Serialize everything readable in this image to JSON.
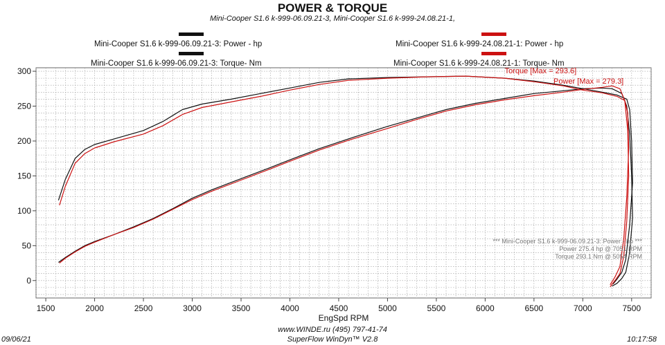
{
  "chart_data": {
    "type": "line",
    "title": "POWER & TORQUE",
    "subtitle": "Mini-Cooper S1.6 k-999-06.09.21-3, Mini-Cooper S1.6 k-999-24.08.21-1,",
    "xlabel": "EngSpd  RPM",
    "ylabel": "",
    "xlim": [
      1400,
      7700
    ],
    "ylim": [
      -25,
      305
    ],
    "xticks": [
      1500,
      2000,
      2500,
      3000,
      3500,
      4000,
      4500,
      5000,
      5500,
      6000,
      6500,
      7000,
      7500
    ],
    "yticks": [
      0,
      50,
      100,
      150,
      200,
      250,
      300
    ],
    "grid": true,
    "legend_position": "top",
    "series": [
      {
        "name": "Mini-Cooper S1.6 k-999-06.09.21-3: Power -  hp",
        "color": "#111111",
        "x": [
          1630,
          1700,
          1800,
          1900,
          2000,
          2200,
          2400,
          2600,
          2800,
          3000,
          3200,
          3500,
          3800,
          4000,
          4300,
          4600,
          5000,
          5300,
          5600,
          5900,
          6200,
          6500,
          6800,
          7000,
          7200,
          7300,
          7400,
          7450,
          7480,
          7500,
          7510,
          7480,
          7440,
          7400,
          7350,
          7300
        ],
        "y": [
          26,
          33,
          42,
          50,
          56,
          66,
          77,
          89,
          103,
          118,
          130,
          146,
          162,
          173,
          189,
          203,
          221,
          233,
          245,
          254,
          261,
          268,
          272,
          275,
          276,
          275,
          268,
          250,
          210,
          150,
          90,
          40,
          12,
          3,
          -4,
          -8
        ]
      },
      {
        "name": "Mini-Cooper S1.6 k-999-06.09.21-3: Torque-  Nm",
        "color": "#111111",
        "x": [
          1630,
          1700,
          1800,
          1900,
          2000,
          2200,
          2500,
          2700,
          2900,
          3100,
          3400,
          3700,
          4000,
          4300,
          4600,
          5000,
          5400,
          5800,
          6200,
          6500,
          6800,
          7000,
          7200,
          7350,
          7450,
          7480,
          7500,
          7510,
          7480,
          7440,
          7400,
          7350,
          7310
        ],
        "y": [
          115,
          145,
          175,
          188,
          195,
          203,
          215,
          228,
          245,
          253,
          260,
          268,
          276,
          284,
          289,
          291,
          292,
          293,
          290,
          286,
          280,
          275,
          270,
          266,
          260,
          245,
          200,
          140,
          80,
          30,
          12,
          2,
          -5
        ]
      },
      {
        "name": "Mini-Cooper S1.6 k-999-24.08.21-1: Power -  hp",
        "color": "#cc1111",
        "x": [
          1640,
          1700,
          1800,
          1900,
          2000,
          2200,
          2400,
          2600,
          2800,
          3000,
          3200,
          3500,
          3800,
          4000,
          4300,
          4600,
          5000,
          5300,
          5600,
          5900,
          6200,
          6500,
          6800,
          7000,
          7200,
          7300,
          7380,
          7430,
          7460,
          7470,
          7450,
          7420,
          7380,
          7330,
          7280
        ],
        "y": [
          25,
          32,
          41,
          49,
          55,
          66,
          76,
          88,
          102,
          116,
          128,
          144,
          160,
          171,
          187,
          201,
          218,
          231,
          243,
          252,
          259,
          265,
          270,
          274,
          277,
          279,
          275,
          258,
          215,
          150,
          85,
          35,
          10,
          0,
          -9
        ]
      },
      {
        "name": "Mini-Cooper S1.6 k-999-24.08.21-1: Torque-  Nm",
        "color": "#cc1111",
        "x": [
          1640,
          1700,
          1800,
          1900,
          2000,
          2200,
          2500,
          2700,
          2900,
          3100,
          3400,
          3700,
          4000,
          4300,
          4600,
          5000,
          5400,
          5800,
          6200,
          6500,
          6800,
          7000,
          7200,
          7350,
          7430,
          7460,
          7470,
          7450,
          7420,
          7380,
          7330,
          7280
        ],
        "y": [
          108,
          135,
          168,
          182,
          190,
          199,
          210,
          222,
          238,
          248,
          256,
          264,
          273,
          281,
          287,
          290,
          292,
          293,
          290,
          285,
          279,
          273,
          269,
          264,
          258,
          240,
          190,
          120,
          60,
          20,
          5,
          -6
        ]
      }
    ],
    "annotations": [
      {
        "text": "Torque [Max = 293.6]",
        "color": "#cc1111",
        "x": 6200,
        "y": 297
      },
      {
        "text": "Power  [Max = 279.3]",
        "color": "#cc1111",
        "x": 6700,
        "y": 282
      }
    ],
    "info_box": {
      "header": "*** Mini-Cooper S1.6 k-999-06.09.21-3: Power -  hp    ***",
      "power_line": "Power   275.4 hp    @ 7051 RPM",
      "torque_line": "Torque   293.1 Nm    @ 5054 RPM"
    }
  },
  "footer": {
    "url": "www.WINDE.ru      (495) 797-41-74",
    "software": "SuperFlow WinDyn™  V2.8",
    "date": "09/06/21",
    "time": "10:17:58"
  }
}
